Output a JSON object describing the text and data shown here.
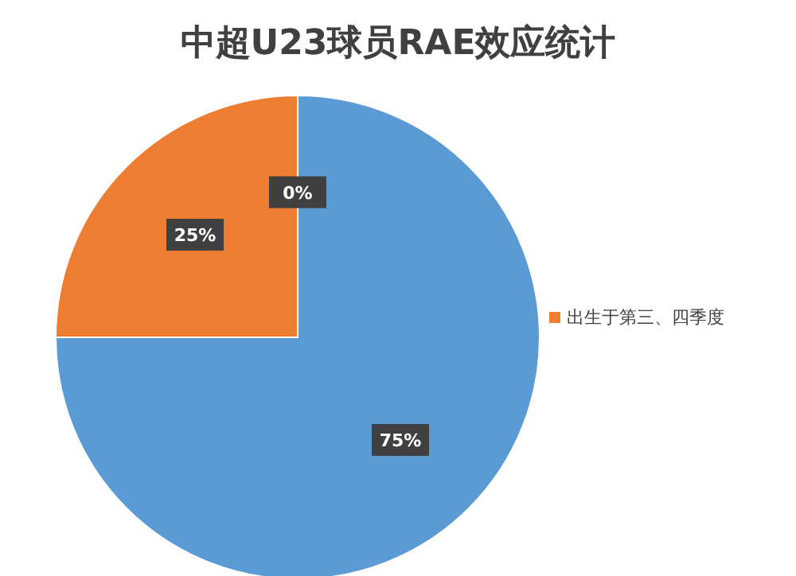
{
  "chart_data": {
    "type": "pie",
    "title": "中超U23球员RAE效应统计",
    "categories": [
      null,
      "出生于第三、四季度",
      null
    ],
    "values": [
      75,
      25,
      0
    ],
    "colors": [
      "#5b9bd5",
      "#ed7d31",
      "#a5a5a5"
    ],
    "value_labels": [
      "75%",
      "25%",
      "0%"
    ],
    "legend": "right"
  }
}
